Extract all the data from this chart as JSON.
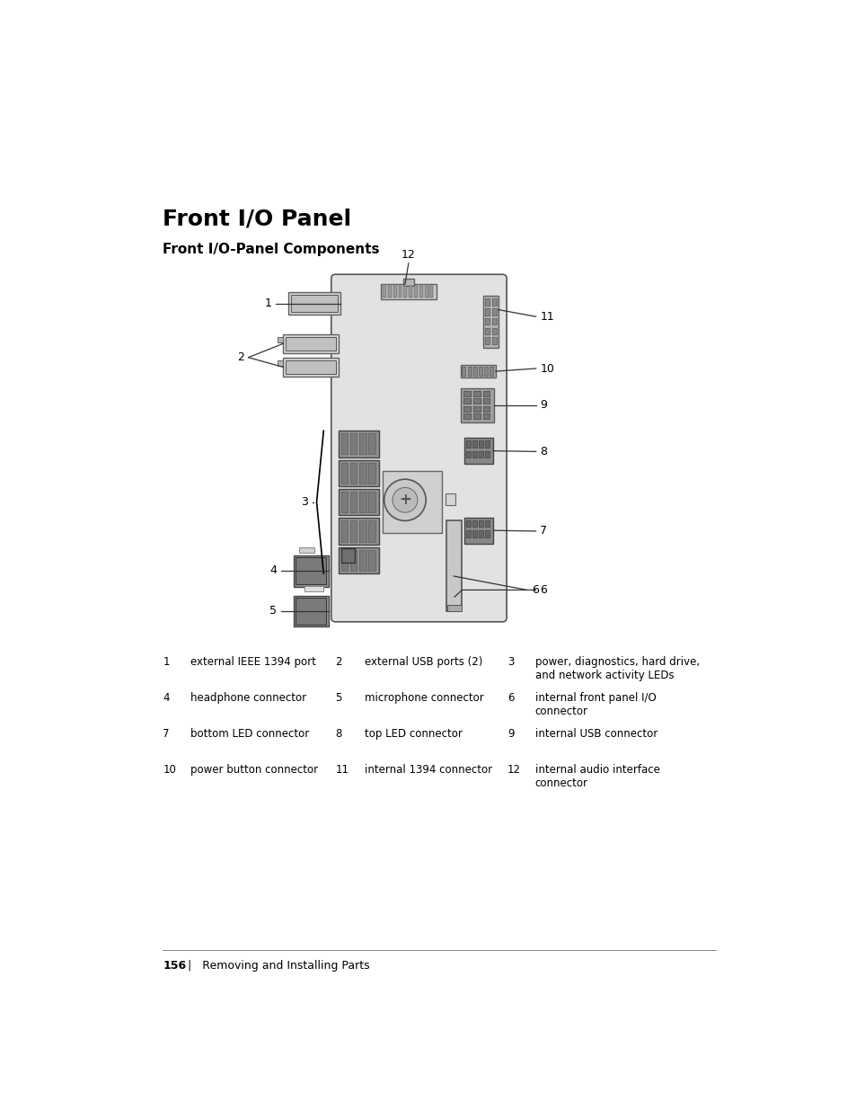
{
  "title": "Front I/O Panel",
  "subtitle": "Front I/O-Panel Components",
  "background_color": "#ffffff",
  "title_fontsize": 18,
  "subtitle_fontsize": 11,
  "labels": [
    {
      "num": "1",
      "text": "external IEEE 1394 port"
    },
    {
      "num": "2",
      "text": "external USB ports (2)"
    },
    {
      "num": "3",
      "text": "power, diagnostics, hard drive,\nand network activity LEDs"
    },
    {
      "num": "4",
      "text": "headphone connector"
    },
    {
      "num": "5",
      "text": "microphone connector"
    },
    {
      "num": "6",
      "text": "internal front panel I/O\nconnector"
    },
    {
      "num": "7",
      "text": "bottom LED connector"
    },
    {
      "num": "8",
      "text": "top LED connector"
    },
    {
      "num": "9",
      "text": "internal USB connector"
    },
    {
      "num": "10",
      "text": "power button connector"
    },
    {
      "num": "11",
      "text": "internal 1394 connector"
    },
    {
      "num": "12",
      "text": "internal audio interface\nconnector"
    }
  ],
  "footer_bold": "156",
  "footer_rest": "   |   Removing and Installing Parts",
  "board_color": "#e2e2e2",
  "board_border_color": "#555555",
  "comp_dark": "#808080",
  "comp_med": "#999999",
  "comp_light": "#cccccc",
  "comp_darker": "#606060"
}
